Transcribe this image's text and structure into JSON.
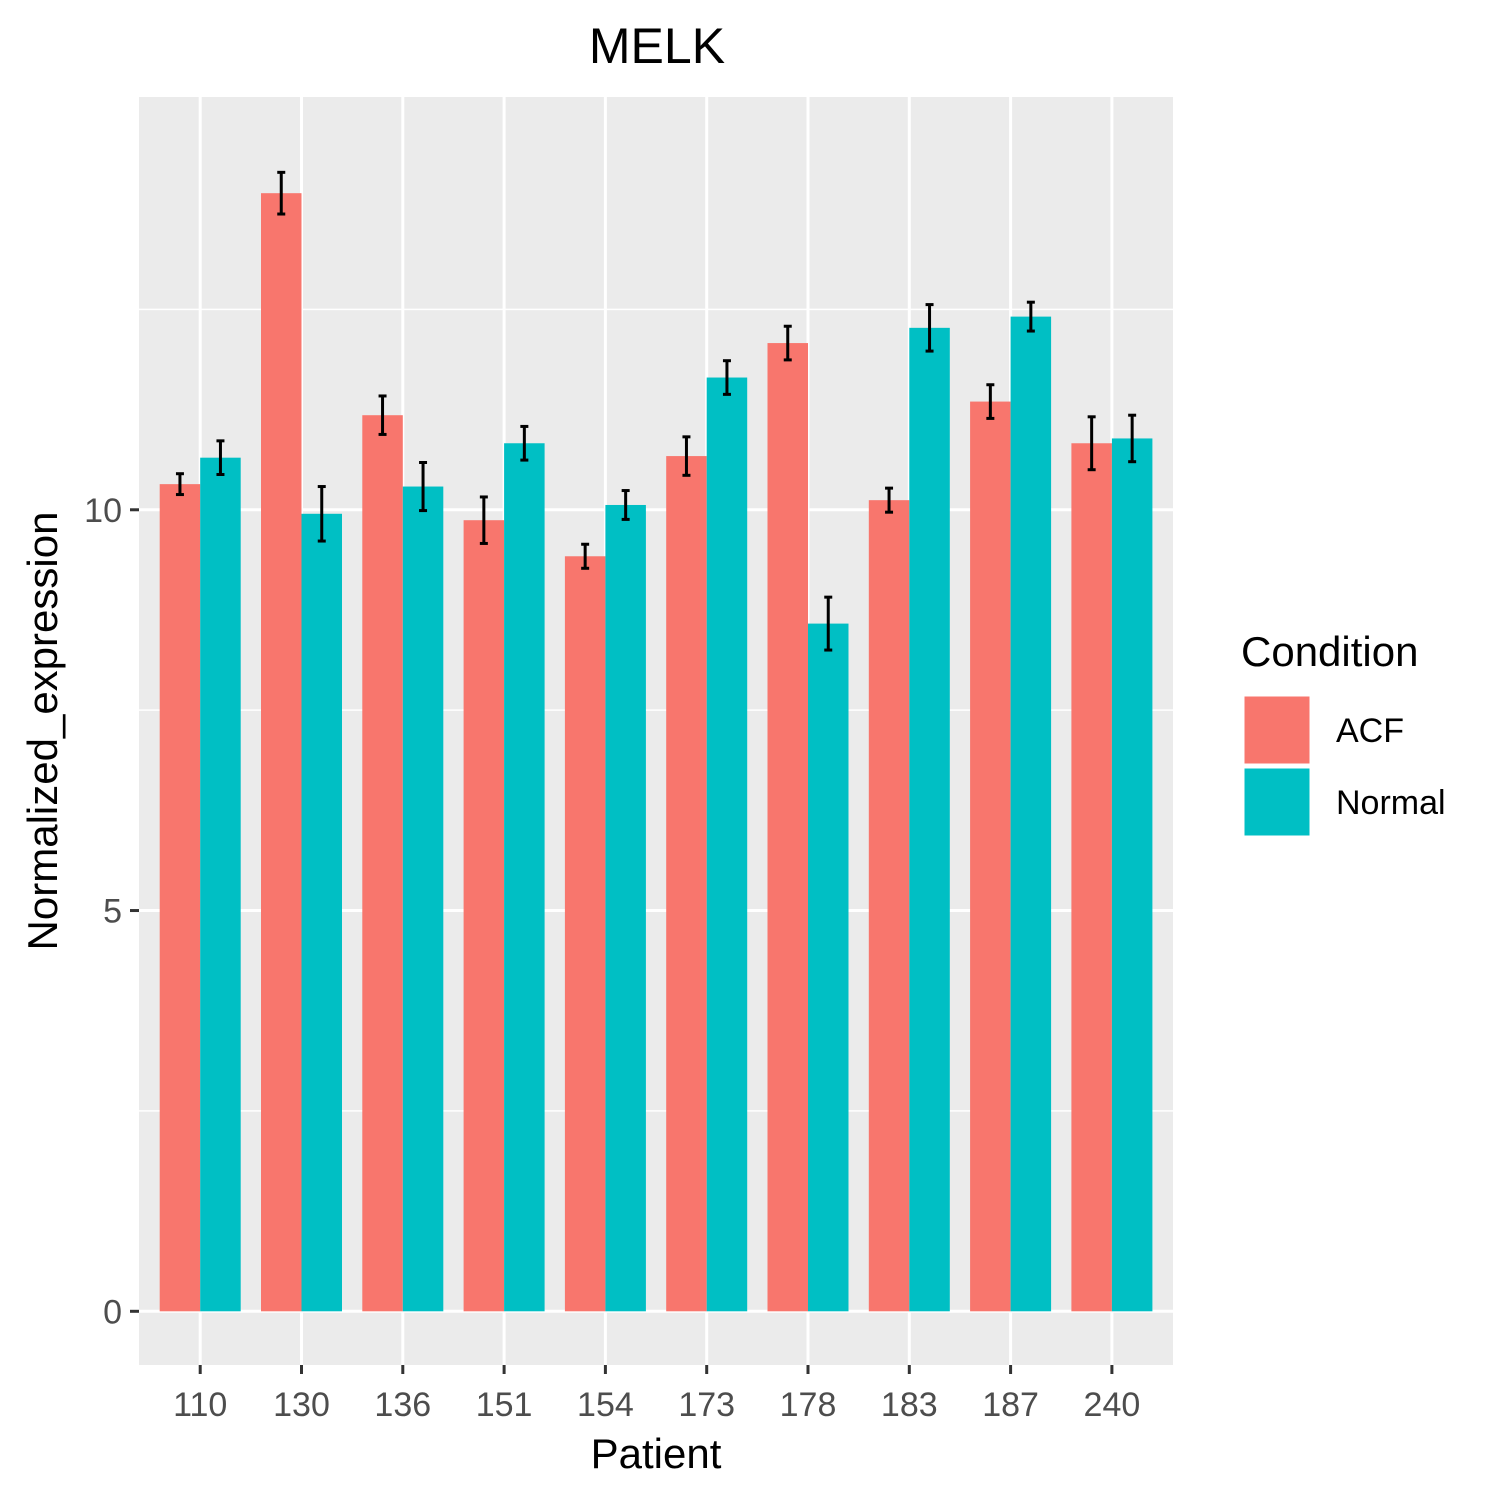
{
  "chart_data": {
    "type": "bar",
    "title": "MELK",
    "xlabel": "Patient",
    "ylabel": "Normalized_expression",
    "categories": [
      "110",
      "130",
      "136",
      "151",
      "154",
      "173",
      "178",
      "183",
      "187",
      "240"
    ],
    "series": [
      {
        "name": "ACF",
        "color": "#F8766D",
        "values": [
          10.32,
          13.95,
          11.18,
          9.87,
          9.42,
          10.67,
          12.08,
          10.12,
          11.35,
          10.83
        ],
        "error": [
          0.13,
          0.26,
          0.24,
          0.29,
          0.15,
          0.24,
          0.21,
          0.15,
          0.21,
          0.33
        ]
      },
      {
        "name": "Normal",
        "color": "#00BFC4",
        "values": [
          10.65,
          9.95,
          10.29,
          10.83,
          10.06,
          11.65,
          8.58,
          12.27,
          12.41,
          10.89
        ],
        "error": [
          0.21,
          0.34,
          0.3,
          0.21,
          0.18,
          0.21,
          0.33,
          0.29,
          0.18,
          0.29
        ]
      }
    ],
    "yticks": [
      0,
      5,
      10
    ],
    "ylim": [
      -0.67,
      15.15
    ],
    "grid": true,
    "legend": {
      "title": "Condition",
      "position": "right"
    },
    "background_color": "#EBEBEB",
    "grid_color": "#FFFFFF"
  }
}
